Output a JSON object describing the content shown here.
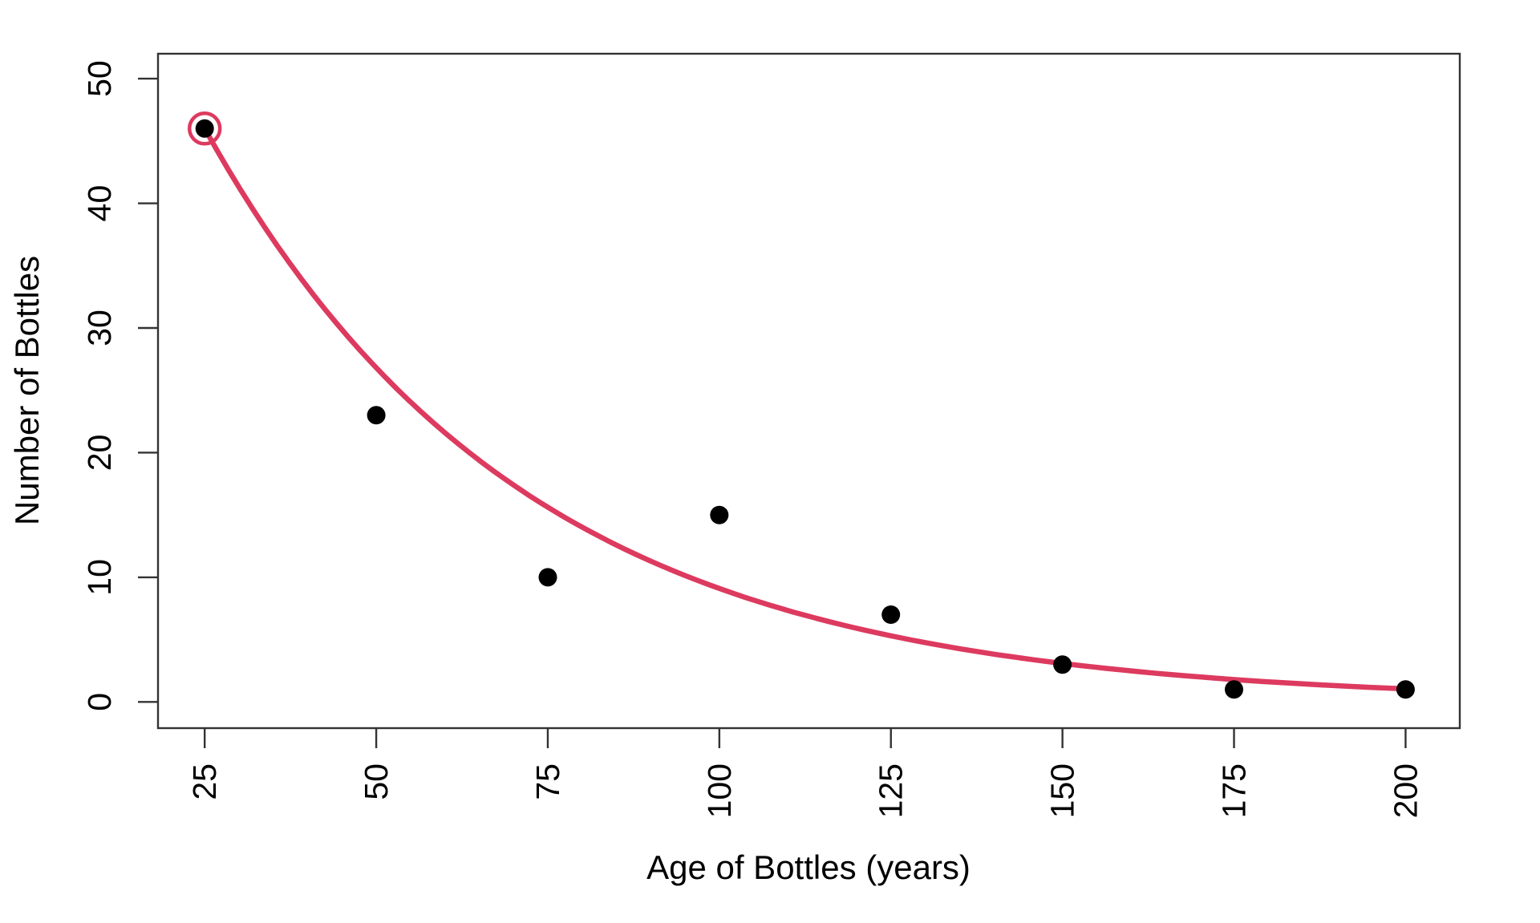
{
  "figure": {
    "background_color": "#ffffff"
  },
  "chart_data": {
    "type": "scatter",
    "title": "",
    "xlabel": "Age of Bottles (years)",
    "ylabel": "Number of Bottles",
    "x": [
      25,
      50,
      75,
      100,
      125,
      150,
      175,
      200
    ],
    "y": [
      46,
      23,
      10,
      15,
      7,
      3,
      1,
      1
    ],
    "x_ticks": [
      25,
      50,
      75,
      100,
      125,
      150,
      175,
      200
    ],
    "y_ticks": [
      0,
      10,
      20,
      30,
      40,
      50
    ],
    "xlim": [
      18.2,
      207.9
    ],
    "ylim": [
      -2.1,
      52.0
    ],
    "grid": false,
    "legend": null,
    "tick_label_rotation_deg": 90,
    "highlighted_point": {
      "x": 25,
      "y": 46,
      "marker": "open-circle-ring",
      "ring_color": "#DD3A5F"
    },
    "fit_curve": {
      "model": "exponential-decay",
      "formula": "y = 46 * exp(-0.0216 * (x - 25))",
      "A": 46,
      "k": 0.0216,
      "x0": 25,
      "x_start": 25,
      "x_end": 200,
      "color": "#DD3A5F"
    },
    "colors": {
      "point": "#000000",
      "curve": "#DD3A5F",
      "axis": "#333333",
      "text": "#000000"
    }
  }
}
